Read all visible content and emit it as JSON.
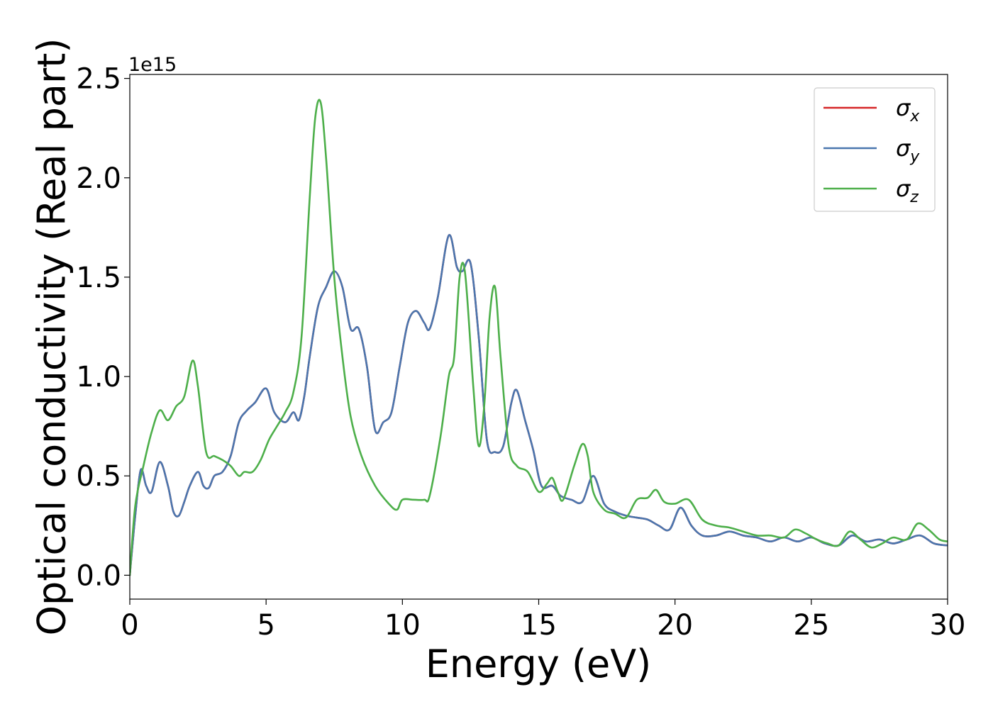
{
  "chart_data": {
    "type": "line",
    "xlabel": "Energy (eV)",
    "ylabel": "Optical conductivity (Real part)",
    "y_offset_label": "1e15",
    "xlim": [
      0,
      30
    ],
    "ylim": [
      -0.12,
      2.52
    ],
    "x_ticks": [
      0,
      5,
      10,
      15,
      20,
      25,
      30
    ],
    "x_tick_labels": [
      "0",
      "5",
      "10",
      "15",
      "20",
      "25",
      "30"
    ],
    "y_ticks": [
      0.0,
      0.5,
      1.0,
      1.5,
      2.0,
      2.5
    ],
    "y_tick_labels": [
      "0.0",
      "0.5",
      "1.0",
      "1.5",
      "2.0",
      "2.5"
    ],
    "legend_position": "top-right",
    "grid": false,
    "series": [
      {
        "name": "σx",
        "symbol": "σ",
        "subscript": "x",
        "color": "#d62728",
        "x": [
          0,
          0.2,
          0.4,
          0.6,
          0.8,
          1.1,
          1.4,
          1.6,
          1.8,
          2.0,
          2.2,
          2.5,
          2.7,
          2.9,
          3.1,
          3.4,
          3.7,
          4.0,
          4.3,
          4.6,
          5.0,
          5.3,
          5.7,
          6.0,
          6.2,
          6.4,
          6.6,
          6.9,
          7.2,
          7.5,
          7.8,
          8.1,
          8.4,
          8.7,
          9.0,
          9.3,
          9.6,
          9.9,
          10.2,
          10.5,
          10.8,
          11.0,
          11.3,
          11.7,
          12.0,
          12.2,
          12.5,
          12.8,
          13.1,
          13.4,
          13.7,
          14.0,
          14.2,
          14.5,
          14.8,
          15.1,
          15.5,
          15.8,
          16.2,
          16.6,
          17.0,
          17.4,
          17.8,
          18.2,
          18.6,
          19.0,
          19.4,
          19.8,
          20.2,
          20.6,
          21.0,
          21.5,
          22.0,
          22.5,
          23.0,
          23.5,
          24.0,
          24.5,
          25.0,
          25.5,
          26.0,
          26.5,
          27.0,
          27.5,
          28.0,
          28.5,
          29.0,
          29.5,
          30.0
        ],
        "y": [
          0.0,
          0.3,
          0.53,
          0.45,
          0.42,
          0.57,
          0.45,
          0.32,
          0.3,
          0.37,
          0.45,
          0.52,
          0.45,
          0.44,
          0.5,
          0.52,
          0.6,
          0.77,
          0.83,
          0.87,
          0.94,
          0.82,
          0.77,
          0.82,
          0.78,
          0.9,
          1.1,
          1.35,
          1.45,
          1.53,
          1.45,
          1.24,
          1.24,
          1.05,
          0.73,
          0.77,
          0.82,
          1.05,
          1.27,
          1.33,
          1.27,
          1.24,
          1.4,
          1.71,
          1.55,
          1.53,
          1.57,
          1.2,
          0.68,
          0.62,
          0.65,
          0.87,
          0.93,
          0.78,
          0.63,
          0.45,
          0.45,
          0.4,
          0.38,
          0.37,
          0.5,
          0.36,
          0.32,
          0.3,
          0.29,
          0.28,
          0.25,
          0.23,
          0.34,
          0.25,
          0.2,
          0.2,
          0.22,
          0.2,
          0.19,
          0.17,
          0.19,
          0.17,
          0.19,
          0.16,
          0.15,
          0.2,
          0.17,
          0.18,
          0.16,
          0.18,
          0.2,
          0.16,
          0.15
        ]
      },
      {
        "name": "σy",
        "symbol": "σ",
        "subscript": "y",
        "color": "#4a76ae",
        "x": [
          0,
          0.2,
          0.4,
          0.6,
          0.8,
          1.1,
          1.4,
          1.6,
          1.8,
          2.0,
          2.2,
          2.5,
          2.7,
          2.9,
          3.1,
          3.4,
          3.7,
          4.0,
          4.3,
          4.6,
          5.0,
          5.3,
          5.7,
          6.0,
          6.2,
          6.4,
          6.6,
          6.9,
          7.2,
          7.5,
          7.8,
          8.1,
          8.4,
          8.7,
          9.0,
          9.3,
          9.6,
          9.9,
          10.2,
          10.5,
          10.8,
          11.0,
          11.3,
          11.7,
          12.0,
          12.2,
          12.5,
          12.8,
          13.1,
          13.4,
          13.7,
          14.0,
          14.2,
          14.5,
          14.8,
          15.1,
          15.5,
          15.8,
          16.2,
          16.6,
          17.0,
          17.4,
          17.8,
          18.2,
          18.6,
          19.0,
          19.4,
          19.8,
          20.2,
          20.6,
          21.0,
          21.5,
          22.0,
          22.5,
          23.0,
          23.5,
          24.0,
          24.5,
          25.0,
          25.5,
          26.0,
          26.5,
          27.0,
          27.5,
          28.0,
          28.5,
          29.0,
          29.5,
          30.0
        ],
        "y": [
          0.0,
          0.3,
          0.53,
          0.45,
          0.42,
          0.57,
          0.45,
          0.32,
          0.3,
          0.37,
          0.45,
          0.52,
          0.45,
          0.44,
          0.5,
          0.52,
          0.6,
          0.77,
          0.83,
          0.87,
          0.94,
          0.82,
          0.77,
          0.82,
          0.78,
          0.9,
          1.1,
          1.35,
          1.45,
          1.53,
          1.45,
          1.24,
          1.24,
          1.05,
          0.73,
          0.77,
          0.82,
          1.05,
          1.27,
          1.33,
          1.27,
          1.24,
          1.4,
          1.71,
          1.55,
          1.53,
          1.57,
          1.2,
          0.68,
          0.62,
          0.65,
          0.87,
          0.93,
          0.78,
          0.63,
          0.45,
          0.45,
          0.4,
          0.38,
          0.37,
          0.5,
          0.36,
          0.32,
          0.3,
          0.29,
          0.28,
          0.25,
          0.23,
          0.34,
          0.25,
          0.2,
          0.2,
          0.22,
          0.2,
          0.19,
          0.17,
          0.19,
          0.17,
          0.19,
          0.16,
          0.15,
          0.2,
          0.17,
          0.18,
          0.16,
          0.18,
          0.2,
          0.16,
          0.15
        ]
      },
      {
        "name": "σz",
        "symbol": "σ",
        "subscript": "z",
        "color": "#4daf4a",
        "x": [
          0,
          0.2,
          0.5,
          0.8,
          1.1,
          1.4,
          1.7,
          2.0,
          2.3,
          2.5,
          2.8,
          3.1,
          3.4,
          3.7,
          4.0,
          4.2,
          4.5,
          4.8,
          5.1,
          5.4,
          5.7,
          6.0,
          6.3,
          6.6,
          6.8,
          7.0,
          7.2,
          7.5,
          7.8,
          8.1,
          8.5,
          9.0,
          9.5,
          9.8,
          10.0,
          10.4,
          10.8,
          11.0,
          11.4,
          11.7,
          11.9,
          12.1,
          12.3,
          12.6,
          12.8,
          13.0,
          13.2,
          13.4,
          13.6,
          13.9,
          14.2,
          14.6,
          15.0,
          15.3,
          15.5,
          15.7,
          15.9,
          16.3,
          16.6,
          16.8,
          17.0,
          17.4,
          17.8,
          18.2,
          18.6,
          19.0,
          19.3,
          19.6,
          20.0,
          20.5,
          21.0,
          21.5,
          22.0,
          22.5,
          23.0,
          23.5,
          24.0,
          24.4,
          24.8,
          25.2,
          25.6,
          26.0,
          26.4,
          26.8,
          27.2,
          27.6,
          28.0,
          28.5,
          28.9,
          29.3,
          29.7,
          30.0
        ],
        "y": [
          0.0,
          0.35,
          0.55,
          0.72,
          0.83,
          0.78,
          0.85,
          0.9,
          1.08,
          0.95,
          0.62,
          0.6,
          0.58,
          0.55,
          0.5,
          0.52,
          0.52,
          0.58,
          0.68,
          0.75,
          0.82,
          0.92,
          1.2,
          1.9,
          2.3,
          2.38,
          2.1,
          1.5,
          1.1,
          0.8,
          0.6,
          0.45,
          0.36,
          0.33,
          0.38,
          0.38,
          0.38,
          0.4,
          0.7,
          1.0,
          1.1,
          1.5,
          1.52,
          0.95,
          0.65,
          0.85,
          1.3,
          1.45,
          1.1,
          0.65,
          0.55,
          0.52,
          0.42,
          0.46,
          0.49,
          0.42,
          0.38,
          0.55,
          0.66,
          0.6,
          0.42,
          0.33,
          0.31,
          0.29,
          0.38,
          0.39,
          0.43,
          0.37,
          0.36,
          0.38,
          0.28,
          0.25,
          0.24,
          0.22,
          0.2,
          0.2,
          0.19,
          0.23,
          0.21,
          0.18,
          0.16,
          0.15,
          0.22,
          0.18,
          0.14,
          0.16,
          0.19,
          0.18,
          0.26,
          0.23,
          0.18,
          0.17
        ]
      }
    ]
  }
}
